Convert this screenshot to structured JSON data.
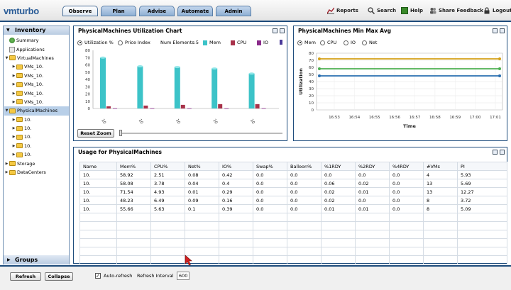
{
  "header": {
    "logo_prefix": "vm",
    "logo_text": "turbo",
    "tabs": [
      {
        "label": "Observe",
        "active": true
      },
      {
        "label": "Plan",
        "active": false
      },
      {
        "label": "Advise",
        "active": false
      },
      {
        "label": "Automate",
        "active": false
      },
      {
        "label": "Admin",
        "active": false
      }
    ],
    "links": {
      "reports": "Reports",
      "search": "Search",
      "help": "Help",
      "share": "Share Feedback",
      "logout": "Logout"
    }
  },
  "sidebar": {
    "inventory_title": "Inventory",
    "groups_title": "Groups",
    "items": [
      {
        "label": "Summary",
        "level": 0,
        "icon": "summary-icon"
      },
      {
        "label": "Applications",
        "level": 0,
        "icon": "applications-icon"
      },
      {
        "label": "VirtualMachines",
        "level": 0,
        "icon": "folder-icon",
        "expanded": true
      },
      {
        "label": "VMs_10.",
        "level": 1,
        "icon": "folder-icon"
      },
      {
        "label": "VMs_10.",
        "level": 1,
        "icon": "folder-icon"
      },
      {
        "label": "VMs_10.",
        "level": 1,
        "icon": "folder-icon"
      },
      {
        "label": "VMs_10.",
        "level": 1,
        "icon": "folder-icon"
      },
      {
        "label": "VMs_10.",
        "level": 1,
        "icon": "folder-icon"
      },
      {
        "label": "PhysicalMachines",
        "level": 0,
        "icon": "folder-icon",
        "expanded": true,
        "selected": true
      },
      {
        "label": "10.",
        "level": 1,
        "icon": "folder-icon"
      },
      {
        "label": "10.",
        "level": 1,
        "icon": "folder-icon"
      },
      {
        "label": "10.",
        "level": 1,
        "icon": "folder-icon"
      },
      {
        "label": "10.",
        "level": 1,
        "icon": "folder-icon"
      },
      {
        "label": "10.",
        "level": 1,
        "icon": "folder-icon"
      },
      {
        "label": "Storage",
        "level": 0,
        "icon": "folder-icon"
      },
      {
        "label": "DataCenters",
        "level": 0,
        "icon": "folder-icon"
      }
    ]
  },
  "util_chart": {
    "title": "PhysicalMachines Utilization Chart",
    "option_util": "Utilization %",
    "option_price": "Price Index",
    "num_elements": "Num Elements:5",
    "legend": [
      "Mem",
      "CPU",
      "IO",
      ""
    ],
    "y_ticks": [
      "80",
      "70",
      "60",
      "50",
      "40",
      "30",
      "20",
      "10",
      "0"
    ],
    "x_labels": [
      "10",
      "10",
      "10",
      "10",
      "10"
    ],
    "reset_zoom": "Reset Zoom"
  },
  "minmax_chart": {
    "title": "PhysicalMachines Min Max Avg",
    "options": [
      "Mem",
      "CPU",
      "IO",
      "Net"
    ],
    "ylabel": "Utilization",
    "xlabel": "Time",
    "y_ticks": [
      "80",
      "70",
      "60",
      "50",
      "40",
      "30",
      "20",
      "10",
      "0"
    ],
    "x_ticks": [
      "16:53",
      "16:54",
      "16:55",
      "16:56",
      "16:57",
      "16:58",
      "16:59",
      "17:00",
      "17:01"
    ]
  },
  "usage": {
    "title": "Usage for PhysicalMachines",
    "columns": [
      "Name",
      "Mem%",
      "CPU%",
      "Net%",
      "IO%",
      "Swap%",
      "Balloon%",
      "%1RDY",
      "%2RDY",
      "%4RDY",
      "#VMs",
      "PI"
    ],
    "rows": [
      [
        "10.",
        "58.92",
        "2.51",
        "0.08",
        "0.42",
        "0.0",
        "0.0",
        "0.0",
        "0.0",
        "0.0",
        "4",
        "5.93"
      ],
      [
        "10.",
        "58.08",
        "3.78",
        "0.04",
        "0.4",
        "0.0",
        "0.0",
        "0.06",
        "0.02",
        "0.0",
        "13",
        "5.69"
      ],
      [
        "10.",
        "71.54",
        "4.93",
        "0.01",
        "0.29",
        "0.0",
        "0.0",
        "0.02",
        "0.01",
        "0.0",
        "13",
        "12.27"
      ],
      [
        "10.",
        "48.23",
        "6.49",
        "0.09",
        "0.16",
        "0.0",
        "0.0",
        "0.02",
        "0.0",
        "0.0",
        "8",
        "3.72"
      ],
      [
        "10.",
        "55.66",
        "5.63",
        "0.1",
        "0.39",
        "0.0",
        "0.0",
        "0.01",
        "0.01",
        "0.0",
        "8",
        "5.09"
      ]
    ]
  },
  "footer": {
    "refresh": "Refresh",
    "collapse": "Collapse",
    "autorefresh": "Auto-refresh",
    "interval_label": "Refresh Interval",
    "interval_value": "600"
  },
  "chart_data": [
    {
      "type": "bar",
      "title": "PhysicalMachines Utilization Chart",
      "categories": [
        "10",
        "10",
        "10",
        "10",
        "10"
      ],
      "ylim": [
        0,
        80
      ],
      "series": [
        {
          "name": "Mem",
          "values": [
            70,
            58,
            57,
            55,
            48
          ]
        },
        {
          "name": "CPU",
          "values": [
            3,
            4,
            5,
            6,
            6
          ]
        },
        {
          "name": "IO",
          "values": [
            0.4,
            0.4,
            0.3,
            0.2,
            0.4
          ]
        }
      ],
      "colors": [
        "#3cc3c8",
        "#a8324a",
        "#8a2a8a"
      ]
    },
    {
      "type": "line",
      "title": "PhysicalMachines Min Max Avg",
      "xlabel": "Time",
      "ylabel": "Utilization",
      "x": [
        "16:53",
        "16:54",
        "16:55",
        "16:56",
        "16:57",
        "16:58",
        "16:59",
        "17:00",
        "17:01"
      ],
      "ylim": [
        0,
        80
      ],
      "series": [
        {
          "values": [
            72,
            72,
            72,
            72,
            72,
            72,
            72,
            72,
            72
          ],
          "color": "#d4a017"
        },
        {
          "values": [
            58,
            58,
            58,
            58,
            58,
            58,
            58,
            58,
            58
          ],
          "color": "#4caf50"
        },
        {
          "values": [
            48,
            48,
            48,
            48,
            48,
            48,
            48,
            48,
            48
          ],
          "color": "#2a6fb0"
        }
      ]
    }
  ]
}
